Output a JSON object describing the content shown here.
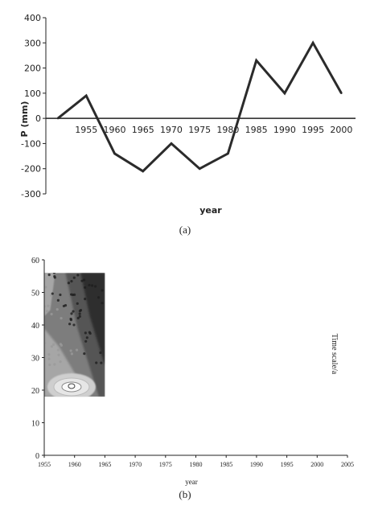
{
  "chart_data": [
    {
      "panel_label": "(a)",
      "type": "line",
      "xlabel": "year",
      "ylabel": "P (mm)",
      "ylim": [
        -300,
        400
      ],
      "yticks": [
        -300,
        -200,
        -100,
        0,
        100,
        200,
        300,
        400
      ],
      "xtick_labels": [
        "1955",
        "1960",
        "1965",
        "1970",
        "1975",
        "1980",
        "1985",
        "1990",
        "1995",
        "2000"
      ],
      "grid": false,
      "series": [
        {
          "x": [
            1950,
            1955,
            1960,
            1965,
            1970,
            1975,
            1980,
            1985,
            1990,
            1995,
            2000
          ],
          "y": [
            0,
            90,
            -140,
            -210,
            -100,
            -200,
            -140,
            230,
            100,
            300,
            100
          ]
        }
      ],
      "colors": {
        "line": "#2b2b2b"
      }
    },
    {
      "panel_label": "(b)",
      "type": "heatmap",
      "xlabel": "year",
      "ylabel": "Time scale/a",
      "xlim": [
        1955,
        2005
      ],
      "ylim": [
        0,
        60
      ],
      "xticks": [
        1955,
        1960,
        1965,
        1970,
        1975,
        1980,
        1985,
        1990,
        1995,
        2000,
        2005
      ],
      "yticks": [
        0,
        10,
        20,
        30,
        40,
        50,
        60
      ],
      "grid": false,
      "data_extent": {
        "x": [
          1955,
          1965
        ],
        "y": [
          18,
          56
        ]
      },
      "colorscale": [
        "#f2f2f2",
        "#cfcfcf",
        "#a6a6a6",
        "#7d7d7d",
        "#555555",
        "#2f2f2f"
      ],
      "hot_spot": {
        "x": 1959.5,
        "y": 21
      }
    }
  ]
}
